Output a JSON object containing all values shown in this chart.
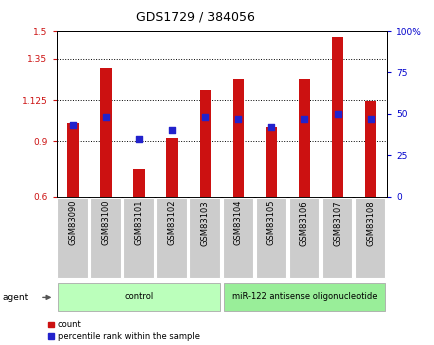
{
  "title": "GDS1729 / 384056",
  "samples": [
    "GSM83090",
    "GSM83100",
    "GSM83101",
    "GSM83102",
    "GSM83103",
    "GSM83104",
    "GSM83105",
    "GSM83106",
    "GSM83107",
    "GSM83108"
  ],
  "count_values": [
    1.0,
    1.3,
    0.75,
    0.92,
    1.18,
    1.24,
    0.98,
    1.24,
    1.47,
    1.12
  ],
  "percentile_values": [
    43,
    48,
    35,
    40,
    48,
    47,
    42,
    47,
    50,
    47
  ],
  "ylim_left": [
    0.6,
    1.5
  ],
  "ylim_right": [
    0,
    100
  ],
  "yticks_left": [
    0.6,
    0.9,
    1.125,
    1.35,
    1.5
  ],
  "ytick_labels_left": [
    "0.6",
    "0.9",
    "1.125",
    "1.35",
    "1.5"
  ],
  "yticks_right": [
    0,
    25,
    50,
    75,
    100
  ],
  "ytick_labels_right": [
    "0",
    "25",
    "50",
    "75",
    "100%"
  ],
  "bar_color": "#cc1111",
  "dot_color": "#2222cc",
  "bar_width": 0.35,
  "dot_size": 18,
  "group_labels": [
    "control",
    "miR-122 antisense oligonucleotide"
  ],
  "group_ranges": [
    [
      0,
      4
    ],
    [
      5,
      9
    ]
  ],
  "group_colors": [
    "#bbffbb",
    "#99ee99"
  ],
  "agent_label": "agent",
  "legend_count_label": "count",
  "legend_pct_label": "percentile rank within the sample",
  "bg_color": "#ffffff",
  "tick_label_color_left": "#cc1111",
  "tick_label_color_right": "#0000cc",
  "xlabel_box_color": "#cccccc"
}
